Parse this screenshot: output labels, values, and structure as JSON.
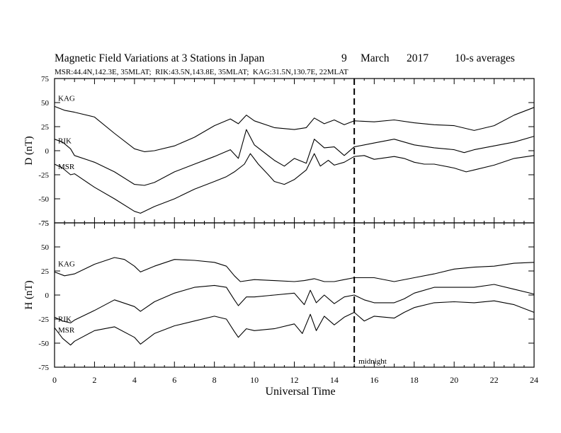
{
  "chart_data": {
    "type": "line",
    "title": {
      "main": "Magnetic Field Variations at 3 Stations in Japan",
      "day": "9",
      "month": "March",
      "year": "2017",
      "averaging": "10-s averages"
    },
    "subtitle": "MSR:44.4N,142.3E, 35MLAT;  RIK:43.5N,143.8E, 35MLAT;  KAG:31.5N,130.7E, 22MLAT",
    "xlabel": "Universal Time",
    "xlim": [
      0,
      24
    ],
    "x_ticks": [
      "0",
      "2",
      "4",
      "6",
      "8",
      "10",
      "12",
      "14",
      "16",
      "18",
      "20",
      "22",
      "24"
    ],
    "marker": {
      "x": 15,
      "label": "midnight",
      "style": "dashed"
    },
    "panels": [
      {
        "id": "D",
        "ylabel": "D (nT)",
        "ylim": [
          -75,
          75
        ],
        "y_ticks": [
          "75",
          "50",
          "25",
          "0",
          "-25",
          "-50",
          "-75"
        ],
        "series": [
          {
            "name": "KAG",
            "points": [
              [
                0,
                46
              ],
              [
                0.5,
                42
              ],
              [
                1,
                40
              ],
              [
                2,
                35
              ],
              [
                3,
                18
              ],
              [
                4,
                2
              ],
              [
                4.5,
                -1
              ],
              [
                5,
                0
              ],
              [
                6,
                5
              ],
              [
                7,
                14
              ],
              [
                8,
                26
              ],
              [
                8.8,
                33
              ],
              [
                9.2,
                28
              ],
              [
                9.6,
                37
              ],
              [
                10,
                31
              ],
              [
                11,
                24
              ],
              [
                12,
                22
              ],
              [
                12.6,
                24
              ],
              [
                13,
                34
              ],
              [
                13.5,
                28
              ],
              [
                14,
                32
              ],
              [
                14.5,
                27
              ],
              [
                15,
                31
              ],
              [
                16,
                30
              ],
              [
                17,
                32
              ],
              [
                18,
                29
              ],
              [
                19,
                27
              ],
              [
                20,
                26
              ],
              [
                21,
                21
              ],
              [
                22,
                26
              ],
              [
                23,
                37
              ],
              [
                24,
                45
              ]
            ]
          },
          {
            "name": "RIK",
            "points": [
              [
                0,
                12
              ],
              [
                0.4,
                9
              ],
              [
                0.8,
                2
              ],
              [
                1,
                -5
              ],
              [
                2,
                -12
              ],
              [
                3,
                -22
              ],
              [
                4,
                -35
              ],
              [
                4.5,
                -36
              ],
              [
                5,
                -33
              ],
              [
                6,
                -22
              ],
              [
                7,
                -14
              ],
              [
                8,
                -6
              ],
              [
                8.8,
                1
              ],
              [
                9.2,
                -8
              ],
              [
                9.6,
                22
              ],
              [
                10,
                6
              ],
              [
                11,
                -10
              ],
              [
                11.5,
                -16
              ],
              [
                12,
                -8
              ],
              [
                12.6,
                -13
              ],
              [
                13,
                12
              ],
              [
                13.5,
                3
              ],
              [
                14,
                4
              ],
              [
                14.5,
                -5
              ],
              [
                15,
                4
              ],
              [
                16,
                8
              ],
              [
                17,
                12
              ],
              [
                18,
                6
              ],
              [
                19,
                3
              ],
              [
                20,
                1
              ],
              [
                20.5,
                -2
              ],
              [
                21,
                1
              ],
              [
                22,
                5
              ],
              [
                23,
                9
              ],
              [
                24,
                15
              ]
            ]
          },
          {
            "name": "MSR",
            "points": [
              [
                0,
                -14
              ],
              [
                0.4,
                -18
              ],
              [
                0.8,
                -25
              ],
              [
                1,
                -24
              ],
              [
                2,
                -38
              ],
              [
                3,
                -50
              ],
              [
                4,
                -63
              ],
              [
                4.3,
                -65
              ],
              [
                5,
                -58
              ],
              [
                6,
                -50
              ],
              [
                7,
                -40
              ],
              [
                8,
                -32
              ],
              [
                8.6,
                -27
              ],
              [
                9,
                -22
              ],
              [
                9.5,
                -14
              ],
              [
                9.8,
                -3
              ],
              [
                10.2,
                -14
              ],
              [
                10.7,
                -25
              ],
              [
                11,
                -32
              ],
              [
                11.5,
                -35
              ],
              [
                12,
                -30
              ],
              [
                12.6,
                -20
              ],
              [
                13,
                -3
              ],
              [
                13.3,
                -16
              ],
              [
                13.7,
                -10
              ],
              [
                14,
                -15
              ],
              [
                14.5,
                -12
              ],
              [
                15,
                -6
              ],
              [
                15.5,
                -5
              ],
              [
                16,
                -9
              ],
              [
                17,
                -6
              ],
              [
                17.5,
                -8
              ],
              [
                18,
                -12
              ],
              [
                18.5,
                -14
              ],
              [
                19,
                -14
              ],
              [
                20,
                -18
              ],
              [
                20.6,
                -22
              ],
              [
                21,
                -20
              ],
              [
                22,
                -15
              ],
              [
                23,
                -8
              ],
              [
                24,
                -5
              ]
            ]
          }
        ]
      },
      {
        "id": "H",
        "ylabel": "H (nT)",
        "ylim": [
          -75,
          75
        ],
        "y_ticks": [
          "75",
          "50",
          "25",
          "0",
          "-25",
          "-50",
          "-75"
        ],
        "series": [
          {
            "name": "KAG",
            "points": [
              [
                0,
                24
              ],
              [
                0.5,
                20
              ],
              [
                1,
                22
              ],
              [
                2,
                32
              ],
              [
                3,
                39
              ],
              [
                3.5,
                37
              ],
              [
                4,
                30
              ],
              [
                4.3,
                24
              ],
              [
                5,
                30
              ],
              [
                6,
                37
              ],
              [
                7,
                36
              ],
              [
                8,
                34
              ],
              [
                8.6,
                30
              ],
              [
                9,
                20
              ],
              [
                9.3,
                14
              ],
              [
                10,
                16
              ],
              [
                11,
                15
              ],
              [
                12,
                14
              ],
              [
                12.5,
                15
              ],
              [
                13,
                17
              ],
              [
                13.5,
                14
              ],
              [
                14,
                14
              ],
              [
                14.5,
                16
              ],
              [
                15,
                18
              ],
              [
                15.5,
                18
              ],
              [
                16,
                18
              ],
              [
                17,
                14
              ],
              [
                18,
                18
              ],
              [
                19,
                22
              ],
              [
                20,
                27
              ],
              [
                21,
                29
              ],
              [
                22,
                30
              ],
              [
                23,
                33
              ],
              [
                24,
                34
              ]
            ]
          },
          {
            "name": "RIK",
            "points": [
              [
                0,
                -23
              ],
              [
                0.4,
                -27
              ],
              [
                0.8,
                -29
              ],
              [
                1,
                -26
              ],
              [
                2,
                -16
              ],
              [
                3,
                -5
              ],
              [
                4,
                -12
              ],
              [
                4.3,
                -17
              ],
              [
                5,
                -7
              ],
              [
                6,
                2
              ],
              [
                7,
                8
              ],
              [
                8,
                10
              ],
              [
                8.6,
                8
              ],
              [
                9,
                -5
              ],
              [
                9.2,
                -11
              ],
              [
                9.6,
                -2
              ],
              [
                10,
                -2
              ],
              [
                11,
                0
              ],
              [
                12,
                2
              ],
              [
                12.5,
                -10
              ],
              [
                12.8,
                5
              ],
              [
                13.1,
                -8
              ],
              [
                13.5,
                0
              ],
              [
                14,
                -9
              ],
              [
                14.5,
                -2
              ],
              [
                15,
                0
              ],
              [
                15.5,
                -5
              ],
              [
                16,
                -8
              ],
              [
                17,
                -8
              ],
              [
                17.5,
                -4
              ],
              [
                18,
                2
              ],
              [
                19,
                8
              ],
              [
                20,
                8
              ],
              [
                21,
                8
              ],
              [
                22,
                11
              ],
              [
                23,
                6
              ],
              [
                24,
                1
              ]
            ]
          },
          {
            "name": "MSR",
            "points": [
              [
                0,
                -34
              ],
              [
                0.4,
                -45
              ],
              [
                0.8,
                -52
              ],
              [
                1,
                -48
              ],
              [
                2,
                -37
              ],
              [
                3,
                -33
              ],
              [
                4,
                -44
              ],
              [
                4.3,
                -51
              ],
              [
                5,
                -40
              ],
              [
                6,
                -32
              ],
              [
                7,
                -27
              ],
              [
                8,
                -22
              ],
              [
                8.6,
                -25
              ],
              [
                9,
                -38
              ],
              [
                9.2,
                -44
              ],
              [
                9.6,
                -35
              ],
              [
                10,
                -37
              ],
              [
                11,
                -35
              ],
              [
                12,
                -30
              ],
              [
                12.4,
                -40
              ],
              [
                12.8,
                -20
              ],
              [
                13.1,
                -37
              ],
              [
                13.5,
                -22
              ],
              [
                14,
                -31
              ],
              [
                14.5,
                -23
              ],
              [
                15,
                -18
              ],
              [
                15.5,
                -27
              ],
              [
                16,
                -22
              ],
              [
                17,
                -24
              ],
              [
                17.5,
                -18
              ],
              [
                18,
                -13
              ],
              [
                19,
                -8
              ],
              [
                20,
                -7
              ],
              [
                21,
                -8
              ],
              [
                22,
                -6
              ],
              [
                23,
                -10
              ],
              [
                24,
                -18
              ]
            ]
          }
        ]
      }
    ]
  }
}
